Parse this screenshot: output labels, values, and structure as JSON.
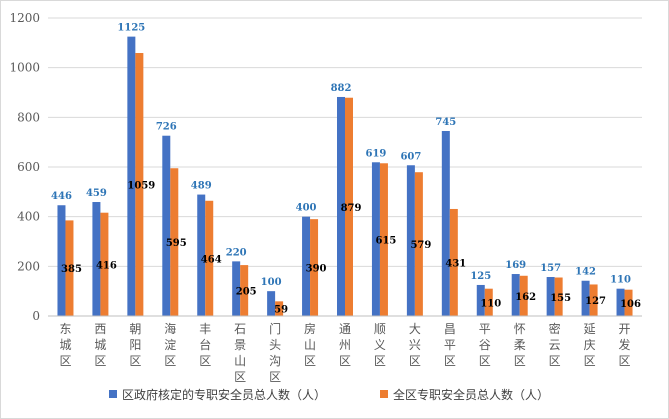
{
  "chart_data": {
    "type": "bar",
    "title": "",
    "xlabel": "",
    "ylabel": "",
    "ylim": [
      0,
      1200
    ],
    "yticks": [
      0,
      200,
      400,
      600,
      800,
      1000,
      1200
    ],
    "grid": true,
    "legend_position": "bottom",
    "categories": [
      "东城区",
      "西城区",
      "朝阳区",
      "海淀区",
      "丰台区",
      "石景山区",
      "门头沟区",
      "房山区",
      "通州区",
      "顺义区",
      "大兴区",
      "昌平区",
      "平谷区",
      "怀柔区",
      "密云区",
      "延庆区",
      "开发区"
    ],
    "series": [
      {
        "name": "区政府核定的专职安全员总人数（人）",
        "color": "#4472c4",
        "label_color": "#2e75b6",
        "values": [
          446,
          459,
          1125,
          726,
          489,
          220,
          100,
          400,
          882,
          619,
          607,
          745,
          125,
          169,
          157,
          142,
          110
        ]
      },
      {
        "name": "全区专职安全员总人数（人）",
        "color": "#ed7d31",
        "label_color": "#000000",
        "values": [
          385,
          416,
          1059,
          595,
          464,
          205,
          59,
          390,
          879,
          615,
          579,
          431,
          110,
          162,
          155,
          127,
          106
        ]
      }
    ]
  }
}
